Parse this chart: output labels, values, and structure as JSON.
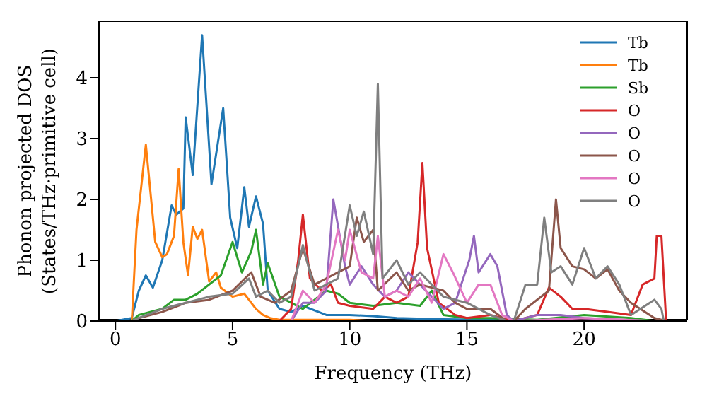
{
  "chart_data": {
    "type": "line",
    "xlabel": "Frequency (THz)",
    "ylabel": "Phonon projected DOS (States/THz·primitive cell)",
    "xlim": [
      -0.7,
      24.4
    ],
    "ylim": [
      0,
      4.93
    ],
    "xticks": [
      0,
      5,
      10,
      15,
      20
    ],
    "yticks": [
      0,
      1,
      2,
      3,
      4
    ],
    "grid": false,
    "legend": "top right",
    "marker": "none",
    "line_style": "solid",
    "series": [
      {
        "name": "Tb",
        "color": "#1f77b4",
        "x": [
          0,
          0.7,
          1.0,
          1.3,
          1.6,
          2.0,
          2.4,
          2.6,
          2.9,
          3.0,
          3.3,
          3.7,
          4.1,
          4.6,
          4.9,
          5.2,
          5.5,
          5.7,
          6.0,
          6.3,
          6.5,
          7.0,
          7.5,
          8,
          9,
          10,
          11,
          12,
          14,
          16,
          17,
          23.5
        ],
        "values": [
          0,
          0.05,
          0.5,
          0.75,
          0.55,
          1.0,
          1.9,
          1.75,
          1.85,
          3.35,
          2.4,
          4.7,
          2.25,
          3.5,
          1.7,
          1.2,
          2.2,
          1.55,
          2.05,
          1.6,
          0.5,
          0.2,
          0.15,
          0.25,
          0.1,
          0.1,
          0.08,
          0.05,
          0.03,
          0.02,
          0,
          0
        ]
      },
      {
        "name": "Tb",
        "color": "#ff7f0e",
        "x": [
          0,
          0.7,
          0.9,
          1.3,
          1.7,
          2.0,
          2.2,
          2.5,
          2.7,
          2.9,
          3.1,
          3.3,
          3.5,
          3.7,
          4.0,
          4.3,
          4.5,
          5.0,
          5.5,
          6.0,
          6.3,
          6.6,
          7,
          10,
          11,
          23.5
        ],
        "values": [
          0,
          0,
          1.5,
          2.9,
          1.3,
          1.05,
          1.1,
          1.4,
          2.5,
          1.3,
          0.75,
          1.55,
          1.35,
          1.5,
          0.65,
          0.8,
          0.55,
          0.4,
          0.45,
          0.2,
          0.1,
          0.05,
          0.02,
          0.02,
          0,
          0
        ]
      },
      {
        "name": "Sb",
        "color": "#2ca02c",
        "x": [
          0,
          0.7,
          1.0,
          2.0,
          2.5,
          3,
          3.5,
          4,
          4.5,
          5.0,
          5.4,
          5.8,
          6.0,
          6.3,
          6.5,
          7,
          7.5,
          8,
          8.5,
          9,
          9.5,
          10,
          11,
          12,
          13,
          13.5,
          14,
          15,
          16,
          18,
          20,
          22,
          23,
          23.5
        ],
        "values": [
          0,
          0,
          0.1,
          0.2,
          0.35,
          0.35,
          0.45,
          0.6,
          0.75,
          1.3,
          0.8,
          1.15,
          1.5,
          0.6,
          0.95,
          0.4,
          0.3,
          0.2,
          0.35,
          0.5,
          0.45,
          0.3,
          0.25,
          0.3,
          0.25,
          0.5,
          0.1,
          0.05,
          0.05,
          0.02,
          0.1,
          0.05,
          0,
          0
        ]
      },
      {
        "name": "O",
        "color": "#d62728",
        "x": [
          0,
          7,
          7.5,
          7.8,
          8.0,
          8.3,
          8.8,
          9.2,
          9.5,
          10,
          11,
          11.5,
          12,
          12.5,
          12.9,
          13.1,
          13.3,
          13.8,
          14.5,
          15,
          16,
          17,
          18,
          18.5,
          19,
          19.5,
          20,
          21,
          22,
          22.5,
          23,
          23.1,
          23.3,
          23.5
        ],
        "values": [
          0,
          0,
          0.2,
          1.0,
          1.75,
          0.7,
          0.5,
          0.6,
          0.3,
          0.25,
          0.2,
          0.4,
          0.3,
          0.4,
          1.3,
          2.6,
          1.2,
          0.3,
          0.1,
          0.05,
          0.1,
          0,
          0.1,
          0.55,
          0.4,
          0.2,
          0.2,
          0.15,
          0.1,
          0.6,
          0.7,
          1.4,
          1.4,
          0
        ]
      },
      {
        "name": "O",
        "color": "#9467bd",
        "x": [
          0,
          7.5,
          8,
          8.5,
          9,
          9.3,
          9.8,
          10,
          10.5,
          11,
          11.5,
          12,
          12.5,
          13,
          13.5,
          14,
          14.5,
          15.1,
          15.3,
          15.5,
          16.0,
          16.3,
          16.7,
          17,
          18,
          19,
          20,
          21,
          23,
          23.5
        ],
        "values": [
          0,
          0,
          0.3,
          0.3,
          0.5,
          2.0,
          0.9,
          0.6,
          0.9,
          0.6,
          0.4,
          0.5,
          0.8,
          0.6,
          0.4,
          0.2,
          0.3,
          1.0,
          1.4,
          0.8,
          1.1,
          0.9,
          0.1,
          0,
          0.1,
          0.1,
          0.05,
          0.03,
          0,
          0
        ]
      },
      {
        "name": "O",
        "color": "#8c564b",
        "x": [
          0,
          0.7,
          1,
          2,
          3,
          4,
          5,
          5.8,
          6.2,
          6.8,
          7.5,
          8,
          8.5,
          9,
          9.5,
          10,
          10.3,
          10.6,
          11,
          11.2,
          12,
          12.5,
          13,
          14,
          14.5,
          15,
          16,
          16.7,
          17,
          17.5,
          18.5,
          18.8,
          19,
          19.5,
          20,
          20.5,
          21,
          21.5,
          22,
          23,
          23.5
        ],
        "values": [
          0,
          0,
          0.05,
          0.15,
          0.3,
          0.35,
          0.5,
          0.8,
          0.4,
          0.3,
          0.5,
          1.2,
          0.6,
          0.7,
          0.8,
          0.9,
          1.7,
          1.3,
          1.5,
          0.5,
          0.8,
          0.5,
          0.6,
          0.5,
          0.3,
          0.2,
          0.2,
          0,
          0,
          0.2,
          0.5,
          2.0,
          1.2,
          0.9,
          0.85,
          0.7,
          0.85,
          0.5,
          0.3,
          0.05,
          0
        ]
      },
      {
        "name": "O",
        "color": "#e377c2",
        "x": [
          0,
          7.5,
          8,
          8.5,
          9,
          9.5,
          9.8,
          10,
          10.5,
          11,
          11.2,
          11.5,
          12,
          12.5,
          13,
          13.5,
          14,
          14.4,
          15,
          15.5,
          16,
          16.5,
          17,
          20,
          23,
          23.5
        ],
        "values": [
          0,
          0,
          0.5,
          0.3,
          0.6,
          1.5,
          1.0,
          1.5,
          0.8,
          0.7,
          1.4,
          0.4,
          0.5,
          0.4,
          0.7,
          0.3,
          1.1,
          0.8,
          0.3,
          0.6,
          0.6,
          0.1,
          0,
          0.05,
          0,
          0
        ]
      },
      {
        "name": "O",
        "color": "#7f7f7f",
        "x": [
          0,
          0.7,
          1,
          2,
          3,
          4,
          5,
          5.7,
          6,
          6.5,
          7,
          7.5,
          8,
          8.5,
          9,
          9.5,
          10,
          10.3,
          10.6,
          11,
          11.2,
          11.4,
          12,
          12.5,
          13,
          14,
          15,
          16,
          16.7,
          17,
          17.5,
          18,
          18.3,
          18.6,
          19,
          19.5,
          20,
          20.5,
          21,
          21.5,
          22,
          23,
          23.3,
          23.4,
          23.5
        ],
        "values": [
          0,
          0,
          0.05,
          0.2,
          0.3,
          0.4,
          0.45,
          0.7,
          0.4,
          0.5,
          0.3,
          0.4,
          1.25,
          0.5,
          0.6,
          0.7,
          1.9,
          1.4,
          1.8,
          1.1,
          3.9,
          0.7,
          1.0,
          0.6,
          0.8,
          0.4,
          0.3,
          0.1,
          0,
          0,
          0.6,
          0.6,
          1.7,
          0.8,
          0.9,
          0.6,
          1.2,
          0.7,
          0.9,
          0.6,
          0.1,
          0.35,
          0.2,
          0,
          0
        ]
      }
    ]
  }
}
